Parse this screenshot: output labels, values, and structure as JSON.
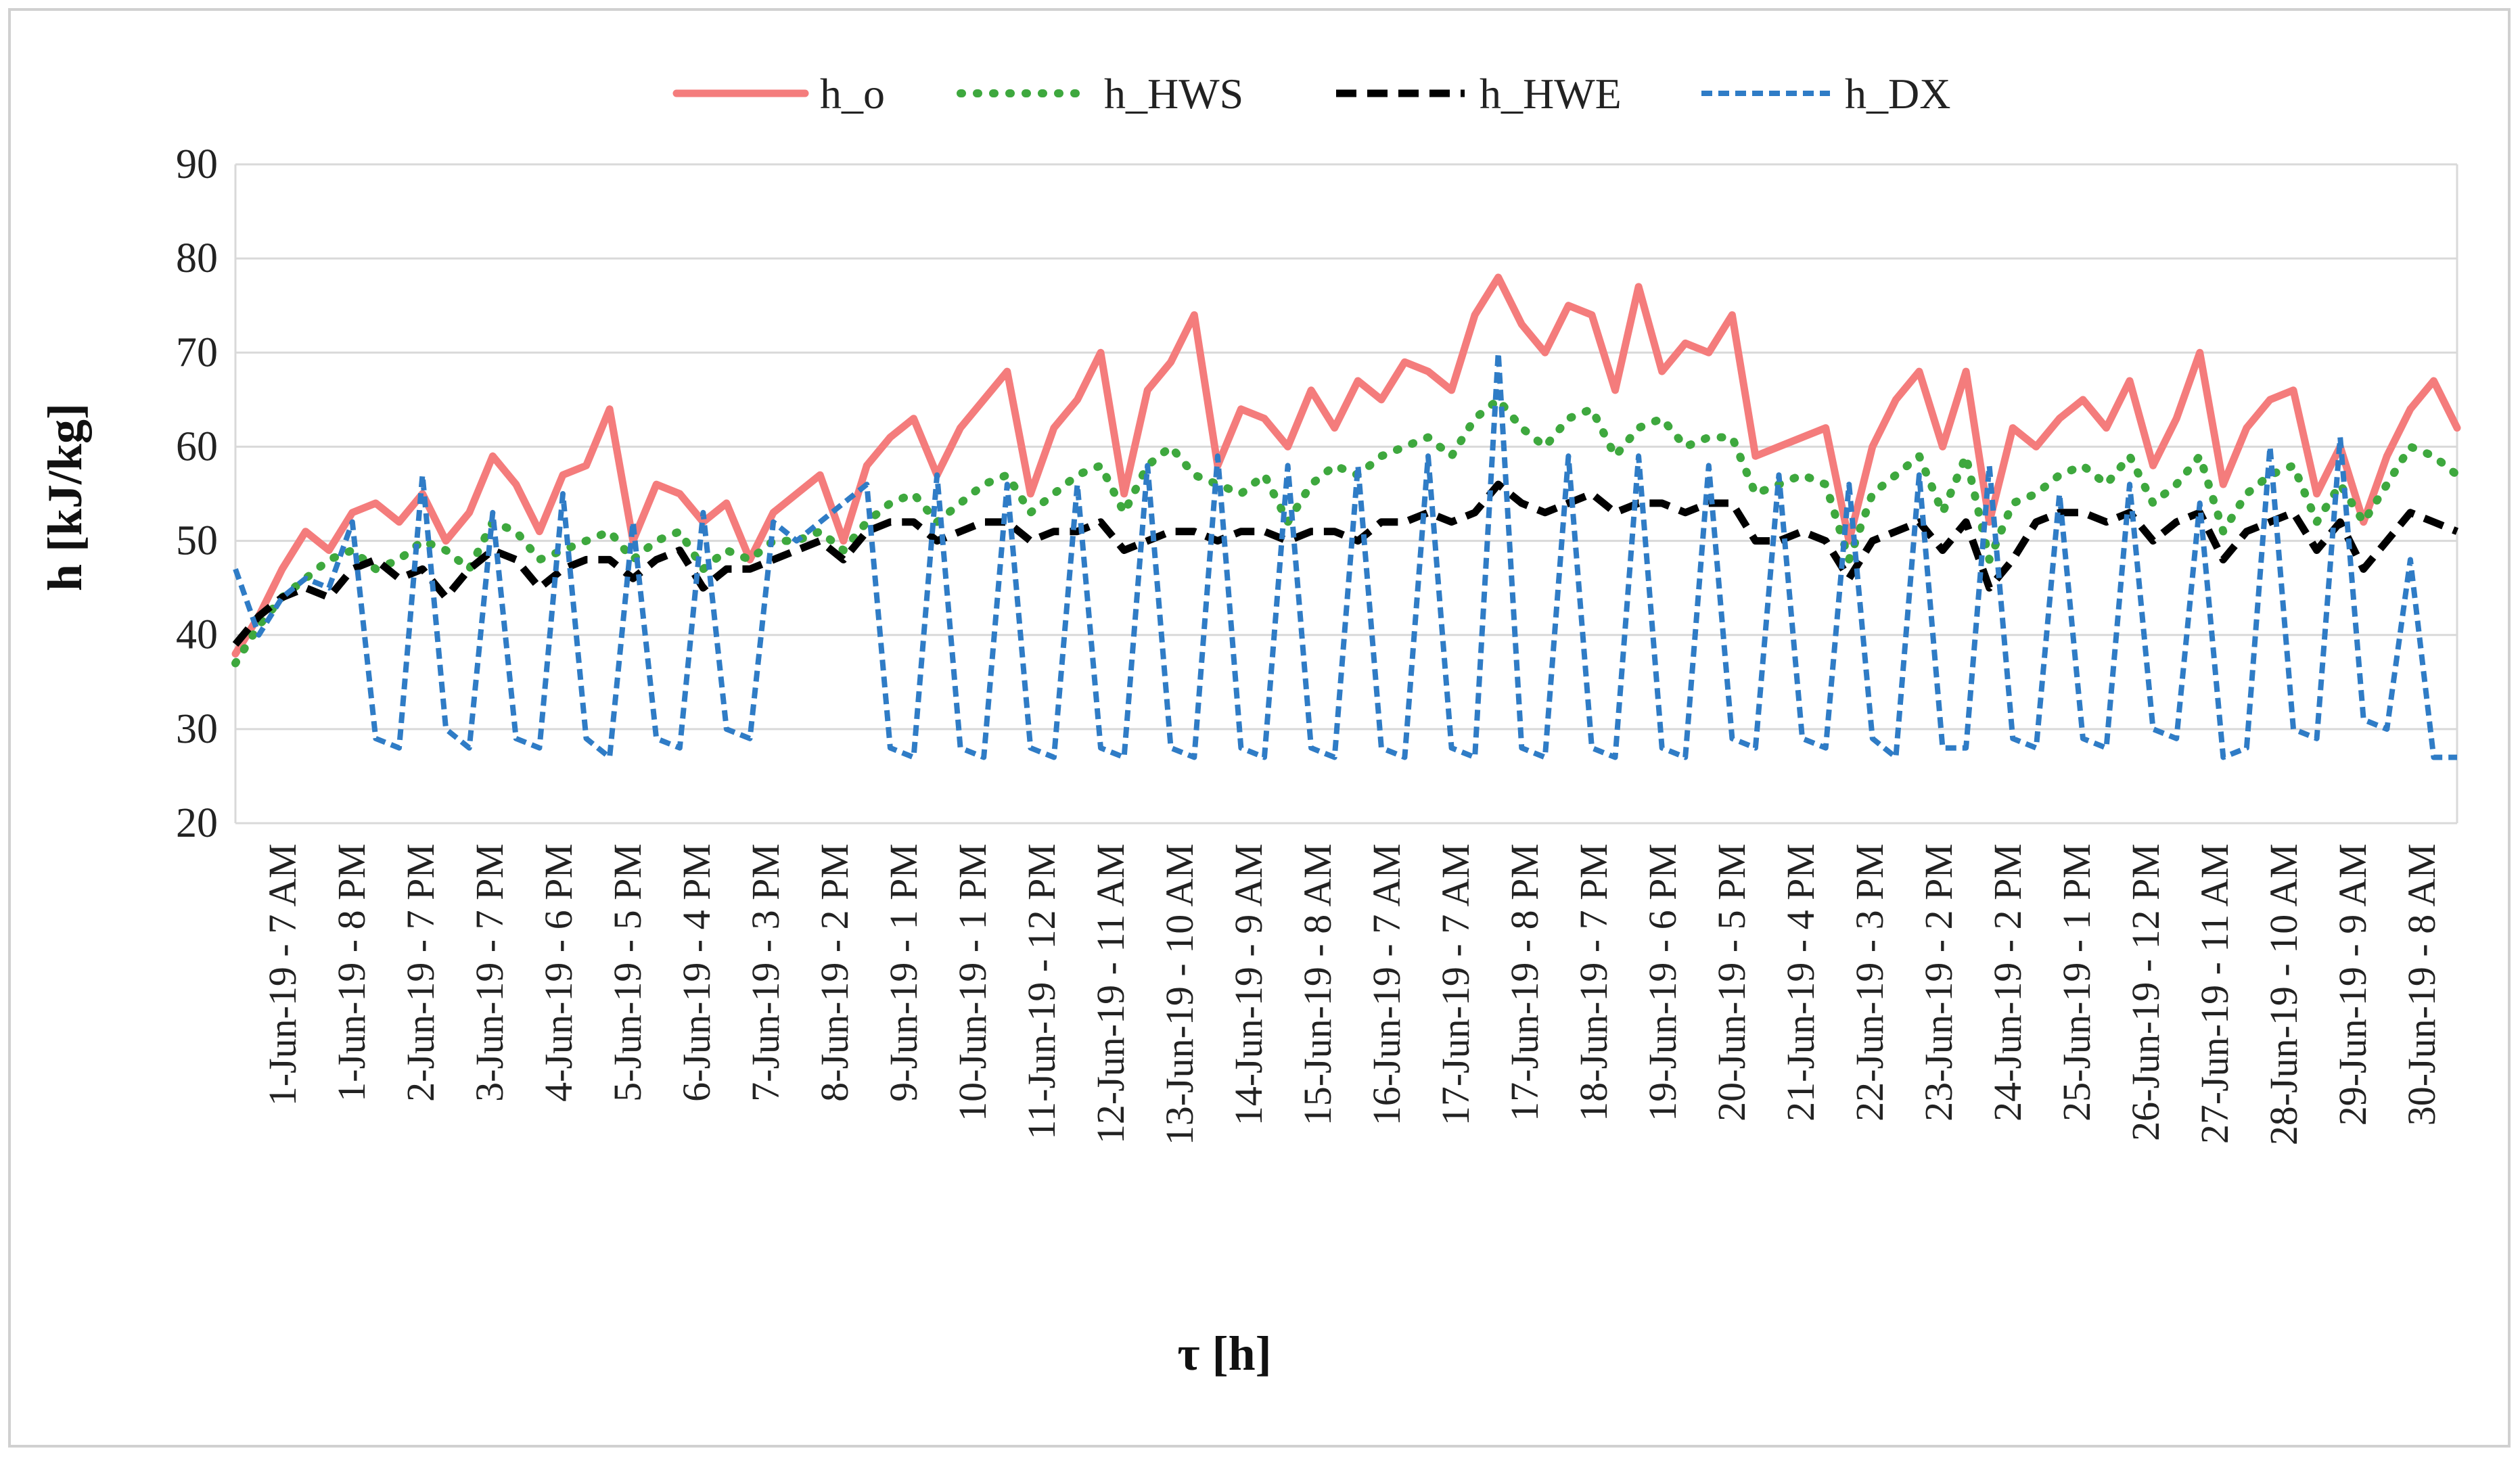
{
  "chart_data": {
    "type": "line",
    "title": "",
    "xlabel": "τ [h]",
    "ylabel": "h [kJ/kg]",
    "ylim": [
      20,
      90
    ],
    "yticks": [
      20,
      30,
      40,
      50,
      60,
      70,
      80,
      90
    ],
    "grid": true,
    "legend_position": "top-center",
    "x_tick_labels": [
      "1-Jun-19 - 7 AM",
      "1-Jun-19 - 8 PM",
      "2-Jun-19 - 7 PM",
      "3-Jun-19 - 7 PM",
      "4-Jun-19 - 6 PM",
      "5-Jun-19 - 5 PM",
      "6-Jun-19 - 4 PM",
      "7-Jun-19 - 3 PM",
      "8-Jun-19 - 2 PM",
      "9-Jun-19 - 1 PM",
      "10-Jun-19 - 1 PM",
      "11-Jun-19 - 12 PM",
      "12-Jun-19 - 11 AM",
      "13-Jun-19 - 10 AM",
      "14-Jun-19 - 9 AM",
      "15-Jun-19 - 8 AM",
      "16-Jun-19 - 7 AM",
      "17-Jun-19 - 7 AM",
      "17-Jun-19 - 8 PM",
      "18-Jun-19 - 7 PM",
      "19-Jun-19 - 6 PM",
      "20-Jun-19 - 5 PM",
      "21-Jun-19 - 4 PM",
      "22-Jun-19 - 3 PM",
      "23-Jun-19 - 2 PM",
      "24-Jun-19 - 2 PM",
      "25-Jun-19 - 1 PM",
      "26-Jun-19 - 12 PM",
      "27-Jun-19 - 11 AM",
      "28-Jun-19 - 10 AM",
      "29-Jun-19 - 9 AM",
      "30-Jun-19 - 8 AM"
    ],
    "x_count": 96,
    "series": [
      {
        "name": "h_o",
        "color": "#f47c7c",
        "dash": "solid",
        "values": [
          38,
          42,
          47,
          51,
          49,
          53,
          54,
          52,
          55,
          50,
          53,
          59,
          56,
          51,
          57,
          58,
          64,
          50,
          56,
          55,
          52,
          54,
          48,
          53,
          55,
          57,
          50,
          58,
          61,
          63,
          57,
          62,
          65,
          68,
          55,
          62,
          65,
          70,
          55,
          66,
          69,
          74,
          58,
          64,
          63,
          60,
          66,
          62,
          67,
          65,
          69,
          68,
          66,
          74,
          78,
          73,
          70,
          75,
          74,
          66,
          77,
          68,
          71,
          70,
          74,
          59,
          60,
          61,
          62,
          50,
          60,
          65,
          68,
          60,
          68,
          52,
          62,
          60,
          63,
          65,
          62,
          67,
          58,
          63,
          70,
          56,
          62,
          65,
          66,
          55,
          60,
          52,
          59,
          64,
          67,
          62
        ]
      },
      {
        "name": "h_HWS",
        "color": "#3ea83e",
        "dash": "dotted",
        "values": [
          37,
          41,
          44,
          46,
          48,
          49,
          47,
          48,
          50,
          49,
          47,
          52,
          51,
          48,
          49,
          50,
          51,
          48,
          50,
          51,
          47,
          49,
          48,
          50,
          50,
          51,
          49,
          52,
          54,
          55,
          52,
          54,
          56,
          57,
          53,
          55,
          57,
          58,
          53,
          58,
          60,
          57,
          56,
          55,
          57,
          52,
          56,
          58,
          57,
          59,
          60,
          61,
          59,
          63,
          65,
          62,
          60,
          63,
          64,
          59,
          62,
          63,
          60,
          61,
          61,
          55,
          56,
          57,
          56,
          48,
          55,
          57,
          59,
          53,
          59,
          48,
          54,
          55,
          57,
          58,
          56,
          59,
          54,
          56,
          59,
          51,
          55,
          57,
          58,
          52,
          56,
          52,
          56,
          60,
          59,
          57
        ]
      },
      {
        "name": "h_HWE",
        "color": "#000000",
        "dash": "longdash",
        "values": [
          39,
          42,
          44,
          45,
          44,
          47,
          48,
          46,
          47,
          44,
          47,
          49,
          48,
          45,
          47,
          48,
          48,
          46,
          48,
          49,
          45,
          47,
          47,
          48,
          49,
          50,
          48,
          51,
          52,
          52,
          50,
          51,
          52,
          52,
          50,
          51,
          51,
          52,
          49,
          50,
          51,
          51,
          50,
          51,
          51,
          50,
          51,
          51,
          50,
          52,
          52,
          53,
          52,
          53,
          56,
          54,
          53,
          54,
          55,
          53,
          54,
          54,
          53,
          54,
          54,
          50,
          50,
          51,
          50,
          46,
          50,
          51,
          52,
          49,
          52,
          45,
          48,
          52,
          53,
          53,
          52,
          53,
          50,
          52,
          53,
          48,
          51,
          52,
          53,
          49,
          52,
          47,
          50,
          53,
          52,
          51
        ]
      },
      {
        "name": "h_DX",
        "color": "#2f7cc6",
        "dash": "dashed",
        "values": [
          47,
          40,
          44,
          46,
          45,
          52,
          29,
          28,
          57,
          30,
          28,
          53,
          29,
          28,
          55,
          29,
          27,
          52,
          29,
          28,
          53,
          30,
          29,
          52,
          50,
          52,
          54,
          56,
          28,
          27,
          57,
          28,
          27,
          56,
          28,
          27,
          56,
          28,
          27,
          58,
          28,
          27,
          59,
          28,
          27,
          58,
          28,
          27,
          58,
          28,
          27,
          59,
          28,
          27,
          70,
          28,
          27,
          59,
          28,
          27,
          59,
          28,
          27,
          58,
          29,
          28,
          57,
          29,
          28,
          56,
          29,
          27,
          57,
          28,
          28,
          58,
          29,
          28,
          55,
          29,
          28,
          56,
          30,
          29,
          54,
          27,
          28,
          60,
          30,
          29,
          61,
          31,
          30,
          48,
          27,
          27
        ]
      }
    ]
  }
}
